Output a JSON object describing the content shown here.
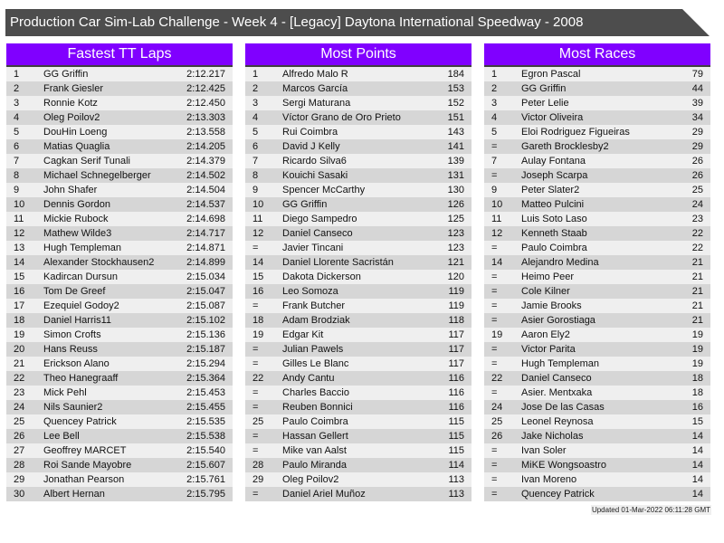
{
  "title": "Production Car Sim-Lab Challenge - Week 4 - [Legacy] Daytona International Speedway - 2008",
  "colors": {
    "header": "#8000ff",
    "title_bar": "#4d4d4d",
    "row_light": "#efefef",
    "row_dark": "#d6d6d6"
  },
  "panels": [
    {
      "title": "Fastest TT Laps",
      "rows": [
        [
          "1",
          "GG Griffin",
          "2:12.217"
        ],
        [
          "2",
          "Frank Giesler",
          "2:12.425"
        ],
        [
          "3",
          "Ronnie Kotz",
          "2:12.450"
        ],
        [
          "4",
          "Oleg Poilov2",
          "2:13.303"
        ],
        [
          "5",
          "DouHin Loeng",
          "2:13.558"
        ],
        [
          "6",
          "Matias Quaglia",
          "2:14.205"
        ],
        [
          "7",
          "Cagkan Serif Tunali",
          "2:14.379"
        ],
        [
          "8",
          "Michael Schnegelberger",
          "2:14.502"
        ],
        [
          "9",
          "John Shafer",
          "2:14.504"
        ],
        [
          "10",
          "Dennis Gordon",
          "2:14.537"
        ],
        [
          "11",
          "Mickie Rubock",
          "2:14.698"
        ],
        [
          "12",
          "Mathew Wilde3",
          "2:14.717"
        ],
        [
          "13",
          "Hugh Templeman",
          "2:14.871"
        ],
        [
          "14",
          "Alexander Stockhausen2",
          "2:14.899"
        ],
        [
          "15",
          "Kadircan Dursun",
          "2:15.034"
        ],
        [
          "16",
          "Tom De Greef",
          "2:15.047"
        ],
        [
          "17",
          "Ezequiel Godoy2",
          "2:15.087"
        ],
        [
          "18",
          "Daniel Harris11",
          "2:15.102"
        ],
        [
          "19",
          "Simon Crofts",
          "2:15.136"
        ],
        [
          "20",
          "Hans Reuss",
          "2:15.187"
        ],
        [
          "21",
          "Erickson Alano",
          "2:15.294"
        ],
        [
          "22",
          "Theo Hanegraaff",
          "2:15.364"
        ],
        [
          "23",
          "Mick Pehl",
          "2:15.453"
        ],
        [
          "24",
          "Nils Saunier2",
          "2:15.455"
        ],
        [
          "25",
          "Quencey Patrick",
          "2:15.535"
        ],
        [
          "26",
          "Lee Bell",
          "2:15.538"
        ],
        [
          "27",
          "Geoffrey MARCET",
          "2:15.540"
        ],
        [
          "28",
          "Roi Sande Mayobre",
          "2:15.607"
        ],
        [
          "29",
          "Jonathan Pearson",
          "2:15.761"
        ],
        [
          "30",
          "Albert Hernan",
          "2:15.795"
        ]
      ]
    },
    {
      "title": "Most Points",
      "rows": [
        [
          "1",
          "Alfredo Malo R",
          "184"
        ],
        [
          "2",
          "Marcos García",
          "153"
        ],
        [
          "3",
          "Sergi Maturana",
          "152"
        ],
        [
          "4",
          "Víctor Grano de Oro Prieto",
          "151"
        ],
        [
          "5",
          "Rui Coimbra",
          "143"
        ],
        [
          "6",
          "David J Kelly",
          "141"
        ],
        [
          "7",
          "Ricardo Silva6",
          "139"
        ],
        [
          "8",
          "Kouichi Sasaki",
          "131"
        ],
        [
          "9",
          "Spencer McCarthy",
          "130"
        ],
        [
          "10",
          "GG Griffin",
          "126"
        ],
        [
          "11",
          "Diego Sampedro",
          "125"
        ],
        [
          "12",
          "Daniel Canseco",
          "123"
        ],
        [
          "=",
          "Javier Tincani",
          "123"
        ],
        [
          "14",
          "Daniel Llorente Sacristán",
          "121"
        ],
        [
          "15",
          "Dakota Dickerson",
          "120"
        ],
        [
          "16",
          "Leo Somoza",
          "119"
        ],
        [
          "=",
          "Frank Butcher",
          "119"
        ],
        [
          "18",
          "Adam Brodziak",
          "118"
        ],
        [
          "19",
          "Edgar Kit",
          "117"
        ],
        [
          "=",
          "Julian Pawels",
          "117"
        ],
        [
          "=",
          "Gilles Le Blanc",
          "117"
        ],
        [
          "22",
          "Andy Cantu",
          "116"
        ],
        [
          "=",
          "Charles Baccio",
          "116"
        ],
        [
          "=",
          "Reuben Bonnici",
          "116"
        ],
        [
          "25",
          "Paulo Coimbra",
          "115"
        ],
        [
          "=",
          "Hassan Gellert",
          "115"
        ],
        [
          "=",
          "Mike van Aalst",
          "115"
        ],
        [
          "28",
          "Paulo Miranda",
          "114"
        ],
        [
          "29",
          "Oleg Poilov2",
          "113"
        ],
        [
          "=",
          "Daniel Ariel Muñoz",
          "113"
        ]
      ]
    },
    {
      "title": "Most Races",
      "rows": [
        [
          "1",
          "Egron Pascal",
          "79"
        ],
        [
          "2",
          "GG Griffin",
          "44"
        ],
        [
          "3",
          "Peter Lelie",
          "39"
        ],
        [
          "4",
          "Victor Oliveira",
          "34"
        ],
        [
          "5",
          "Eloi Rodriguez Figueiras",
          "29"
        ],
        [
          "=",
          "Gareth Brocklesby2",
          "29"
        ],
        [
          "7",
          "Aulay Fontana",
          "26"
        ],
        [
          "=",
          "Joseph Scarpa",
          "26"
        ],
        [
          "9",
          "Peter Slater2",
          "25"
        ],
        [
          "10",
          "Matteo Pulcini",
          "24"
        ],
        [
          "11",
          "Luis Soto Laso",
          "23"
        ],
        [
          "12",
          "Kenneth Staab",
          "22"
        ],
        [
          "=",
          "Paulo Coimbra",
          "22"
        ],
        [
          "14",
          "Alejandro Medina",
          "21"
        ],
        [
          "=",
          "Heimo Peer",
          "21"
        ],
        [
          "=",
          "Cole Kilner",
          "21"
        ],
        [
          "=",
          "Jamie Brooks",
          "21"
        ],
        [
          "=",
          "Asier Gorostiaga",
          "21"
        ],
        [
          "19",
          "Aaron Ely2",
          "19"
        ],
        [
          "=",
          "Victor Parita",
          "19"
        ],
        [
          "=",
          "Hugh Templeman",
          "19"
        ],
        [
          "22",
          "Daniel Canseco",
          "18"
        ],
        [
          "=",
          "Asier. Mentxaka",
          "18"
        ],
        [
          "24",
          "Jose De las Casas",
          "16"
        ],
        [
          "25",
          "Leonel Reynosa",
          "15"
        ],
        [
          "26",
          "Jake Nicholas",
          "14"
        ],
        [
          "=",
          "Ivan Soler",
          "14"
        ],
        [
          "=",
          "MiKE Wongsoastro",
          "14"
        ],
        [
          "=",
          "Ivan Moreno",
          "14"
        ],
        [
          "=",
          "Quencey Patrick",
          "14"
        ]
      ]
    }
  ],
  "updated": "Updated 01-Mar-2022 06:11:28 GMT"
}
